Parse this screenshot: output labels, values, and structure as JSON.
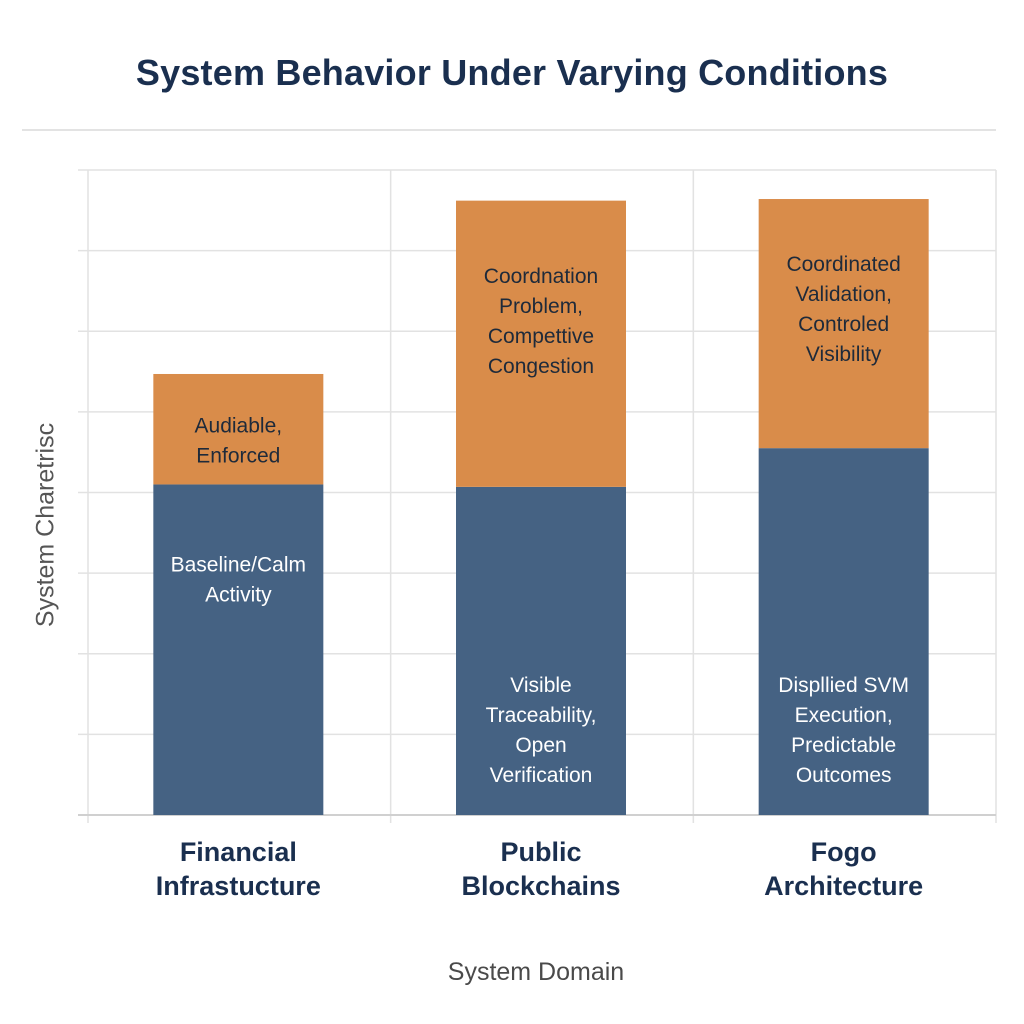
{
  "chart_data": {
    "type": "bar",
    "stacked": true,
    "title": "System Behavior Under Varying Conditions",
    "xlabel": "System Domain",
    "ylabel": "System Charetrisc",
    "ylim": [
      0,
      8
    ],
    "grid": true,
    "categories": [
      [
        "Financial",
        "Infrastucture"
      ],
      [
        "Public",
        "Blockchains"
      ],
      [
        "Fogo",
        "Architecture"
      ]
    ],
    "series": [
      {
        "color": "#456283",
        "values": [
          4.1,
          4.07,
          4.55
        ],
        "labels": [
          [
            "Baseline/Calm",
            "Activity"
          ],
          [
            "Visible",
            "Traceability,",
            "Open",
            "Verification"
          ],
          [
            "Displlied SVM",
            "Execution,",
            "Predictable",
            "Outcomes"
          ]
        ]
      },
      {
        "color": "#d98c4a",
        "values": [
          1.37,
          3.55,
          3.09
        ],
        "labels": [
          [
            "Audiable,",
            "Enforced"
          ],
          [
            "Coordnation",
            "Problem,",
            "Compettive",
            "Congestion"
          ],
          [
            "Coordinated",
            "Validation,",
            "Controled",
            "Visibility"
          ]
        ]
      }
    ]
  }
}
